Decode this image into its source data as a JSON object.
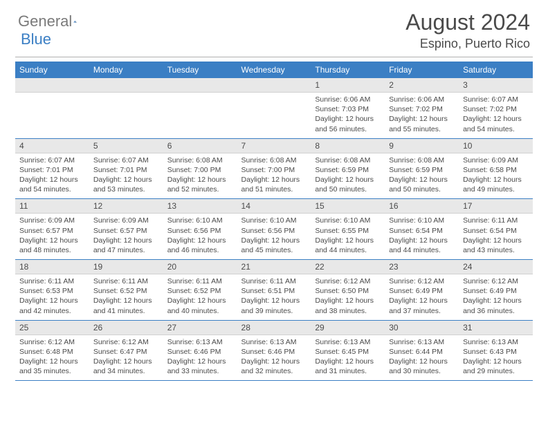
{
  "brand": {
    "part1": "General",
    "part2": "Blue"
  },
  "title": "August 2024",
  "location": "Espino, Puerto Rico",
  "colors": {
    "header_bg": "#3b7fc4",
    "header_text": "#ffffff",
    "daynum_bg": "#e8e8e8",
    "text": "#4a4a4a",
    "row_border": "#3b7fc4",
    "logo_gray": "#7a7a7a",
    "logo_blue": "#3b7fc4"
  },
  "day_headers": [
    "Sunday",
    "Monday",
    "Tuesday",
    "Wednesday",
    "Thursday",
    "Friday",
    "Saturday"
  ],
  "weeks": [
    [
      {
        "n": "",
        "sr": "",
        "ss": "",
        "dl": ""
      },
      {
        "n": "",
        "sr": "",
        "ss": "",
        "dl": ""
      },
      {
        "n": "",
        "sr": "",
        "ss": "",
        "dl": ""
      },
      {
        "n": "",
        "sr": "",
        "ss": "",
        "dl": ""
      },
      {
        "n": "1",
        "sr": "Sunrise: 6:06 AM",
        "ss": "Sunset: 7:03 PM",
        "dl": "Daylight: 12 hours and 56 minutes."
      },
      {
        "n": "2",
        "sr": "Sunrise: 6:06 AM",
        "ss": "Sunset: 7:02 PM",
        "dl": "Daylight: 12 hours and 55 minutes."
      },
      {
        "n": "3",
        "sr": "Sunrise: 6:07 AM",
        "ss": "Sunset: 7:02 PM",
        "dl": "Daylight: 12 hours and 54 minutes."
      }
    ],
    [
      {
        "n": "4",
        "sr": "Sunrise: 6:07 AM",
        "ss": "Sunset: 7:01 PM",
        "dl": "Daylight: 12 hours and 54 minutes."
      },
      {
        "n": "5",
        "sr": "Sunrise: 6:07 AM",
        "ss": "Sunset: 7:01 PM",
        "dl": "Daylight: 12 hours and 53 minutes."
      },
      {
        "n": "6",
        "sr": "Sunrise: 6:08 AM",
        "ss": "Sunset: 7:00 PM",
        "dl": "Daylight: 12 hours and 52 minutes."
      },
      {
        "n": "7",
        "sr": "Sunrise: 6:08 AM",
        "ss": "Sunset: 7:00 PM",
        "dl": "Daylight: 12 hours and 51 minutes."
      },
      {
        "n": "8",
        "sr": "Sunrise: 6:08 AM",
        "ss": "Sunset: 6:59 PM",
        "dl": "Daylight: 12 hours and 50 minutes."
      },
      {
        "n": "9",
        "sr": "Sunrise: 6:08 AM",
        "ss": "Sunset: 6:59 PM",
        "dl": "Daylight: 12 hours and 50 minutes."
      },
      {
        "n": "10",
        "sr": "Sunrise: 6:09 AM",
        "ss": "Sunset: 6:58 PM",
        "dl": "Daylight: 12 hours and 49 minutes."
      }
    ],
    [
      {
        "n": "11",
        "sr": "Sunrise: 6:09 AM",
        "ss": "Sunset: 6:57 PM",
        "dl": "Daylight: 12 hours and 48 minutes."
      },
      {
        "n": "12",
        "sr": "Sunrise: 6:09 AM",
        "ss": "Sunset: 6:57 PM",
        "dl": "Daylight: 12 hours and 47 minutes."
      },
      {
        "n": "13",
        "sr": "Sunrise: 6:10 AM",
        "ss": "Sunset: 6:56 PM",
        "dl": "Daylight: 12 hours and 46 minutes."
      },
      {
        "n": "14",
        "sr": "Sunrise: 6:10 AM",
        "ss": "Sunset: 6:56 PM",
        "dl": "Daylight: 12 hours and 45 minutes."
      },
      {
        "n": "15",
        "sr": "Sunrise: 6:10 AM",
        "ss": "Sunset: 6:55 PM",
        "dl": "Daylight: 12 hours and 44 minutes."
      },
      {
        "n": "16",
        "sr": "Sunrise: 6:10 AM",
        "ss": "Sunset: 6:54 PM",
        "dl": "Daylight: 12 hours and 44 minutes."
      },
      {
        "n": "17",
        "sr": "Sunrise: 6:11 AM",
        "ss": "Sunset: 6:54 PM",
        "dl": "Daylight: 12 hours and 43 minutes."
      }
    ],
    [
      {
        "n": "18",
        "sr": "Sunrise: 6:11 AM",
        "ss": "Sunset: 6:53 PM",
        "dl": "Daylight: 12 hours and 42 minutes."
      },
      {
        "n": "19",
        "sr": "Sunrise: 6:11 AM",
        "ss": "Sunset: 6:52 PM",
        "dl": "Daylight: 12 hours and 41 minutes."
      },
      {
        "n": "20",
        "sr": "Sunrise: 6:11 AM",
        "ss": "Sunset: 6:52 PM",
        "dl": "Daylight: 12 hours and 40 minutes."
      },
      {
        "n": "21",
        "sr": "Sunrise: 6:11 AM",
        "ss": "Sunset: 6:51 PM",
        "dl": "Daylight: 12 hours and 39 minutes."
      },
      {
        "n": "22",
        "sr": "Sunrise: 6:12 AM",
        "ss": "Sunset: 6:50 PM",
        "dl": "Daylight: 12 hours and 38 minutes."
      },
      {
        "n": "23",
        "sr": "Sunrise: 6:12 AM",
        "ss": "Sunset: 6:49 PM",
        "dl": "Daylight: 12 hours and 37 minutes."
      },
      {
        "n": "24",
        "sr": "Sunrise: 6:12 AM",
        "ss": "Sunset: 6:49 PM",
        "dl": "Daylight: 12 hours and 36 minutes."
      }
    ],
    [
      {
        "n": "25",
        "sr": "Sunrise: 6:12 AM",
        "ss": "Sunset: 6:48 PM",
        "dl": "Daylight: 12 hours and 35 minutes."
      },
      {
        "n": "26",
        "sr": "Sunrise: 6:12 AM",
        "ss": "Sunset: 6:47 PM",
        "dl": "Daylight: 12 hours and 34 minutes."
      },
      {
        "n": "27",
        "sr": "Sunrise: 6:13 AM",
        "ss": "Sunset: 6:46 PM",
        "dl": "Daylight: 12 hours and 33 minutes."
      },
      {
        "n": "28",
        "sr": "Sunrise: 6:13 AM",
        "ss": "Sunset: 6:46 PM",
        "dl": "Daylight: 12 hours and 32 minutes."
      },
      {
        "n": "29",
        "sr": "Sunrise: 6:13 AM",
        "ss": "Sunset: 6:45 PM",
        "dl": "Daylight: 12 hours and 31 minutes."
      },
      {
        "n": "30",
        "sr": "Sunrise: 6:13 AM",
        "ss": "Sunset: 6:44 PM",
        "dl": "Daylight: 12 hours and 30 minutes."
      },
      {
        "n": "31",
        "sr": "Sunrise: 6:13 AM",
        "ss": "Sunset: 6:43 PM",
        "dl": "Daylight: 12 hours and 29 minutes."
      }
    ]
  ]
}
